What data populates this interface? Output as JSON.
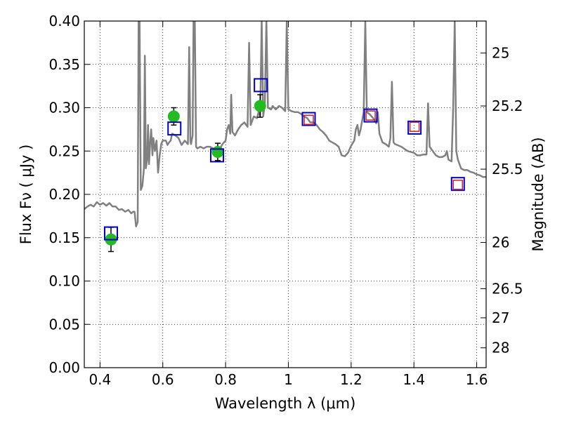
{
  "chart_data": {
    "type": "scatter",
    "xlabel": "Wavelength  λ (μm)",
    "ylabel": "Flux  Fν  ( μJy )",
    "ylabel_right": "Magnitude (AB)",
    "xlim": [
      0.35,
      1.63
    ],
    "ylim": [
      0.0,
      0.4
    ],
    "grid": true,
    "x_ticks": [
      {
        "value": 0.4,
        "label": "0.4"
      },
      {
        "value": 0.6,
        "label": "0.6"
      },
      {
        "value": 0.8,
        "label": "0.8"
      },
      {
        "value": 1.0,
        "label": "1"
      },
      {
        "value": 1.2,
        "label": "1.2"
      },
      {
        "value": 1.4,
        "label": "1.4"
      },
      {
        "value": 1.6,
        "label": "1.6"
      }
    ],
    "y_ticks": [
      {
        "value": 0.0,
        "label": "0.00"
      },
      {
        "value": 0.05,
        "label": "0.05"
      },
      {
        "value": 0.1,
        "label": "0.10"
      },
      {
        "value": 0.15,
        "label": "0.15"
      },
      {
        "value": 0.2,
        "label": "0.20"
      },
      {
        "value": 0.25,
        "label": "0.25"
      },
      {
        "value": 0.3,
        "label": "0.30"
      },
      {
        "value": 0.35,
        "label": "0.35"
      },
      {
        "value": 0.4,
        "label": "0.40"
      }
    ],
    "mag_ticks": [
      {
        "mag": 25,
        "label": "25"
      },
      {
        "mag": 25.2,
        "label": "25.2"
      },
      {
        "mag": 25.5,
        "label": "25.5"
      },
      {
        "mag": 26,
        "label": "26"
      },
      {
        "mag": 26.5,
        "label": "26.5"
      },
      {
        "mag": 27,
        "label": "27"
      },
      {
        "mag": 28,
        "label": "28"
      }
    ],
    "series": [
      {
        "kind": "line",
        "color": "#808080",
        "points": [
          [
            0.35,
            0.183
          ],
          [
            0.36,
            0.186
          ],
          [
            0.37,
            0.188
          ],
          [
            0.38,
            0.186
          ],
          [
            0.39,
            0.191
          ],
          [
            0.4,
            0.188
          ],
          [
            0.41,
            0.19
          ],
          [
            0.42,
            0.187
          ],
          [
            0.43,
            0.19
          ],
          [
            0.44,
            0.186
          ],
          [
            0.45,
            0.186
          ],
          [
            0.46,
            0.182
          ],
          [
            0.47,
            0.183
          ],
          [
            0.48,
            0.18
          ],
          [
            0.49,
            0.182
          ],
          [
            0.5,
            0.178
          ],
          [
            0.505,
            0.18
          ],
          [
            0.51,
            0.18
          ],
          [
            0.515,
            0.163
          ],
          [
            0.52,
            0.168
          ],
          [
            0.523,
            0.4
          ],
          [
            0.526,
            0.4
          ],
          [
            0.53,
            0.205
          ],
          [
            0.535,
            0.21
          ],
          [
            0.54,
            0.23
          ],
          [
            0.543,
            0.36
          ],
          [
            0.546,
            0.23
          ],
          [
            0.55,
            0.24
          ],
          [
            0.553,
            0.28
          ],
          [
            0.556,
            0.235
          ],
          [
            0.56,
            0.26
          ],
          [
            0.563,
            0.275
          ],
          [
            0.567,
            0.245
          ],
          [
            0.57,
            0.265
          ],
          [
            0.575,
            0.25
          ],
          [
            0.58,
            0.262
          ],
          [
            0.585,
            0.225
          ],
          [
            0.59,
            0.245
          ],
          [
            0.595,
            0.258
          ],
          [
            0.6,
            0.262
          ],
          [
            0.61,
            0.262
          ],
          [
            0.615,
            0.257
          ],
          [
            0.62,
            0.26
          ],
          [
            0.625,
            0.262
          ],
          [
            0.63,
            0.27
          ],
          [
            0.64,
            0.268
          ],
          [
            0.65,
            0.265
          ],
          [
            0.66,
            0.257
          ],
          [
            0.67,
            0.262
          ],
          [
            0.68,
            0.258
          ],
          [
            0.684,
            0.37
          ],
          [
            0.688,
            0.262
          ],
          [
            0.69,
            0.258
          ],
          [
            0.695,
            0.268
          ],
          [
            0.698,
            0.4
          ],
          [
            0.702,
            0.4
          ],
          [
            0.706,
            0.255
          ],
          [
            0.71,
            0.253
          ],
          [
            0.72,
            0.255
          ],
          [
            0.73,
            0.253
          ],
          [
            0.74,
            0.255
          ],
          [
            0.75,
            0.255
          ],
          [
            0.76,
            0.253
          ],
          [
            0.77,
            0.25
          ],
          [
            0.78,
            0.251
          ],
          [
            0.79,
            0.258
          ],
          [
            0.8,
            0.262
          ],
          [
            0.805,
            0.275
          ],
          [
            0.81,
            0.28
          ],
          [
            0.815,
            0.27
          ],
          [
            0.818,
            0.315
          ],
          [
            0.822,
            0.272
          ],
          [
            0.83,
            0.268
          ],
          [
            0.84,
            0.275
          ],
          [
            0.85,
            0.28
          ],
          [
            0.86,
            0.283
          ],
          [
            0.87,
            0.278
          ],
          [
            0.875,
            0.375
          ],
          [
            0.88,
            0.28
          ],
          [
            0.89,
            0.29
          ],
          [
            0.9,
            0.288
          ],
          [
            0.905,
            0.295
          ],
          [
            0.91,
            0.29
          ],
          [
            0.915,
            0.4
          ],
          [
            0.92,
            0.29
          ],
          [
            0.925,
            0.305
          ],
          [
            0.93,
            0.4
          ],
          [
            0.935,
            0.3
          ],
          [
            0.945,
            0.298
          ],
          [
            0.95,
            0.302
          ],
          [
            0.96,
            0.298
          ],
          [
            0.97,
            0.302
          ],
          [
            0.98,
            0.3
          ],
          [
            0.99,
            0.296
          ],
          [
            0.995,
            0.4
          ],
          [
            1.0,
            0.298
          ],
          [
            1.01,
            0.296
          ],
          [
            1.02,
            0.295
          ],
          [
            1.03,
            0.295
          ],
          [
            1.04,
            0.293
          ],
          [
            1.05,
            0.29
          ],
          [
            1.06,
            0.288
          ],
          [
            1.07,
            0.283
          ],
          [
            1.08,
            0.283
          ],
          [
            1.09,
            0.28
          ],
          [
            1.1,
            0.275
          ],
          [
            1.11,
            0.272
          ],
          [
            1.12,
            0.268
          ],
          [
            1.13,
            0.262
          ],
          [
            1.14,
            0.26
          ],
          [
            1.15,
            0.258
          ],
          [
            1.16,
            0.255
          ],
          [
            1.17,
            0.245
          ],
          [
            1.18,
            0.244
          ],
          [
            1.19,
            0.248
          ],
          [
            1.2,
            0.256
          ],
          [
            1.21,
            0.262
          ],
          [
            1.215,
            0.275
          ],
          [
            1.22,
            0.28
          ],
          [
            1.225,
            0.268
          ],
          [
            1.23,
            0.275
          ],
          [
            1.24,
            0.295
          ],
          [
            1.245,
            0.4
          ],
          [
            1.25,
            0.295
          ],
          [
            1.26,
            0.292
          ],
          [
            1.27,
            0.288
          ],
          [
            1.28,
            0.282
          ],
          [
            1.285,
            0.295
          ],
          [
            1.29,
            0.27
          ],
          [
            1.3,
            0.26
          ],
          [
            1.31,
            0.258
          ],
          [
            1.32,
            0.255
          ],
          [
            1.325,
            0.265
          ],
          [
            1.33,
            0.33
          ],
          [
            1.335,
            0.26
          ],
          [
            1.34,
            0.258
          ],
          [
            1.36,
            0.255
          ],
          [
            1.38,
            0.25
          ],
          [
            1.4,
            0.248
          ],
          [
            1.41,
            0.245
          ],
          [
            1.42,
            0.245
          ],
          [
            1.43,
            0.246
          ],
          [
            1.44,
            0.246
          ],
          [
            1.445,
            0.305
          ],
          [
            1.45,
            0.255
          ],
          [
            1.46,
            0.25
          ],
          [
            1.47,
            0.245
          ],
          [
            1.48,
            0.243
          ],
          [
            1.49,
            0.243
          ],
          [
            1.5,
            0.245
          ],
          [
            1.505,
            0.25
          ],
          [
            1.51,
            0.24
          ],
          [
            1.52,
            0.238
          ],
          [
            1.525,
            0.3
          ],
          [
            1.53,
            0.4
          ],
          [
            1.535,
            0.25
          ],
          [
            1.54,
            0.24
          ],
          [
            1.55,
            0.23
          ],
          [
            1.56,
            0.228
          ],
          [
            1.57,
            0.228
          ],
          [
            1.58,
            0.226
          ],
          [
            1.59,
            0.225
          ],
          [
            1.6,
            0.223
          ],
          [
            1.61,
            0.222
          ],
          [
            1.62,
            0.22
          ],
          [
            1.63,
            0.22
          ]
        ]
      },
      {
        "kind": "points-with-errorbars",
        "marker": "circle",
        "color": "#22bb22",
        "points": [
          {
            "x": 0.435,
            "y": 0.148,
            "yerr": 0.014
          },
          {
            "x": 0.635,
            "y": 0.29,
            "yerr": 0.01
          },
          {
            "x": 0.775,
            "y": 0.249,
            "yerr": 0.01
          },
          {
            "x": 0.91,
            "y": 0.302,
            "yerr": 0.013
          }
        ]
      },
      {
        "kind": "points",
        "marker": "square-open",
        "color": "#0000cc",
        "points": [
          {
            "x": 0.435,
            "y": 0.155
          },
          {
            "x": 0.637,
            "y": 0.276
          },
          {
            "x": 0.773,
            "y": 0.245
          },
          {
            "x": 0.912,
            "y": 0.326
          },
          {
            "x": 1.065,
            "y": 0.287
          },
          {
            "x": 1.262,
            "y": 0.291
          },
          {
            "x": 1.402,
            "y": 0.277
          },
          {
            "x": 1.54,
            "y": 0.212
          }
        ]
      },
      {
        "kind": "points",
        "marker": "square-open",
        "color": "#cc2222",
        "points": [
          {
            "x": 1.065,
            "y": 0.286
          },
          {
            "x": 1.262,
            "y": 0.291
          },
          {
            "x": 1.402,
            "y": 0.278
          },
          {
            "x": 1.54,
            "y": 0.211
          }
        ]
      }
    ]
  }
}
